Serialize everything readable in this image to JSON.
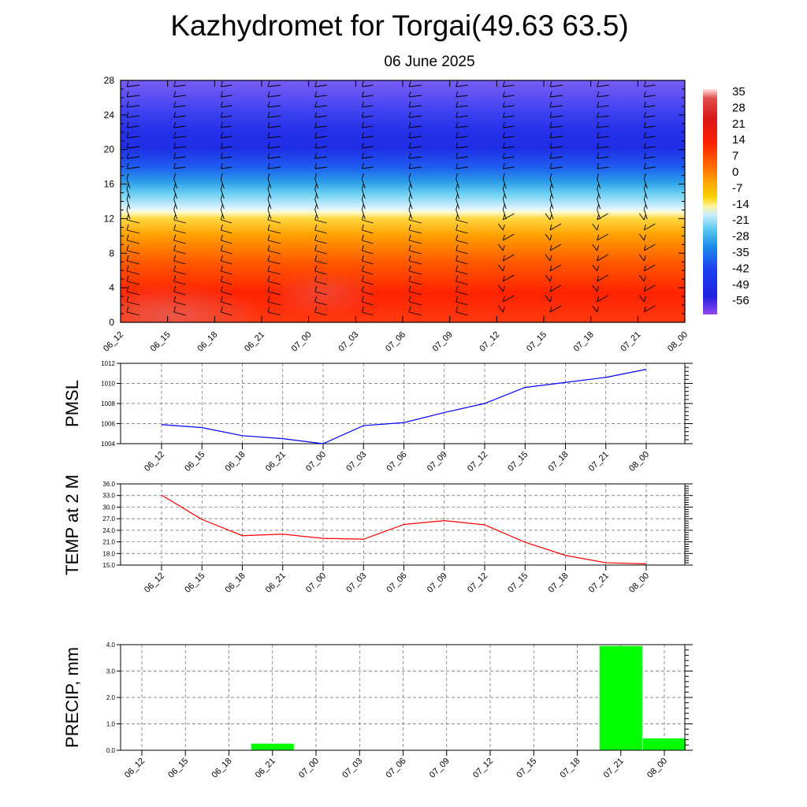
{
  "title": "Kazhydromet for Torgai(49.63 63.5)",
  "subtitle": "06 June 2025",
  "colors": {
    "pmsl_line": "#0000ff",
    "temp_line": "#ff0000",
    "precip_bar": "#00ff00"
  },
  "chart_data": [
    {
      "type": "heatmap",
      "title": "",
      "x_tick_labels": [
        "06_12",
        "06_15",
        "06_18",
        "06_21",
        "07_00",
        "07_03",
        "07_06",
        "07_09",
        "07_12",
        "07_15",
        "07_18",
        "07_21",
        "08_00"
      ],
      "y_ticks": [
        0,
        4,
        8,
        12,
        16,
        20,
        24,
        28
      ],
      "ylim": [
        0,
        28
      ],
      "colorbar_labels": [
        "35",
        "28",
        "21",
        "14",
        "7",
        "0",
        "-7",
        "-14",
        "-21",
        "-28",
        "-35",
        "-42",
        "-49",
        "-56"
      ],
      "overlay": "wind barbs",
      "temperature_by_level": [
        {
          "level": 0,
          "value": 32
        },
        {
          "level": 4,
          "value": 27
        },
        {
          "level": 8,
          "value": 17
        },
        {
          "level": 12,
          "value": 2
        },
        {
          "level": 13,
          "value": -10
        },
        {
          "level": 16,
          "value": -32
        },
        {
          "level": 20,
          "value": -54
        },
        {
          "level": 24,
          "value": -52
        },
        {
          "level": 28,
          "value": -46
        }
      ]
    },
    {
      "type": "line",
      "ylabel": "PMSL",
      "categories": [
        "06_12",
        "06_15",
        "06_18",
        "06_21",
        "07_00",
        "07_03",
        "07_06",
        "07_09",
        "07_12",
        "07_15",
        "07_18",
        "07_21",
        "08_00"
      ],
      "y_tick_labels": [
        "1004",
        "1006",
        "1008",
        "1010",
        "1012"
      ],
      "ylim": [
        1004,
        1012
      ],
      "grid": true,
      "series": [
        {
          "values": [
            1005.9,
            1005.6,
            1004.8,
            1004.5,
            1004.0,
            1005.8,
            1006.1,
            1007.1,
            1008.0,
            1009.6,
            1010.1,
            1010.6,
            1011.4
          ]
        }
      ]
    },
    {
      "type": "line",
      "ylabel": "TEMP at 2 M",
      "categories": [
        "06_12",
        "06_15",
        "06_18",
        "06_21",
        "07_00",
        "07_03",
        "07_06",
        "07_09",
        "07_12",
        "07_15",
        "07_18",
        "07_21",
        "08_00"
      ],
      "y_tick_labels": [
        "15.0",
        "18.0",
        "21.0",
        "24.0",
        "27.0",
        "30.0",
        "33.0",
        "36.0"
      ],
      "ylim": [
        15,
        36
      ],
      "grid": true,
      "series": [
        {
          "values": [
            33.1,
            26.8,
            22.6,
            23.0,
            21.9,
            21.7,
            25.5,
            26.5,
            25.4,
            20.9,
            17.5,
            15.6,
            15.3
          ]
        }
      ]
    },
    {
      "type": "bar",
      "ylabel": "PRECIP, mm",
      "categories": [
        "06_12",
        "06_15",
        "06_18",
        "06_21",
        "07_00",
        "07_03",
        "07_06",
        "07_09",
        "07_12",
        "07_15",
        "07_18",
        "07_21",
        "08_00"
      ],
      "y_tick_labels": [
        "0.0",
        "1.0",
        "2.0",
        "3.0",
        "4.0"
      ],
      "ylim": [
        0,
        4
      ],
      "grid": true,
      "values": [
        0,
        0,
        0,
        0.25,
        0,
        0,
        0,
        0,
        0,
        0,
        0,
        3.95,
        0.45
      ]
    }
  ]
}
